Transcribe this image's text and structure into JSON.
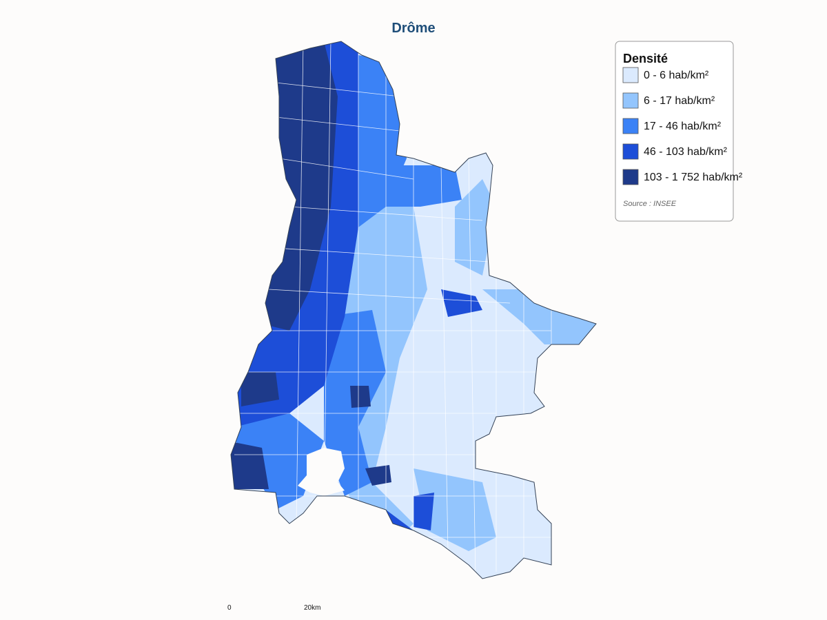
{
  "title": "Drôme",
  "legend": {
    "title": "Densité",
    "items": [
      {
        "label": "0 - 6 hab/km²",
        "color": "#dbeafe"
      },
      {
        "label": "6 - 17 hab/km²",
        "color": "#93c5fd"
      },
      {
        "label": "17 - 46 hab/km²",
        "color": "#3b82f6"
      },
      {
        "label": "46 - 103 hab/km²",
        "color": "#1d4ed8"
      },
      {
        "label": "103 - 1 752 hab/km²",
        "color": "#1e3a8a"
      }
    ],
    "source": "Source : INSEE"
  },
  "scale": {
    "start": "0",
    "end": "20km"
  }
}
